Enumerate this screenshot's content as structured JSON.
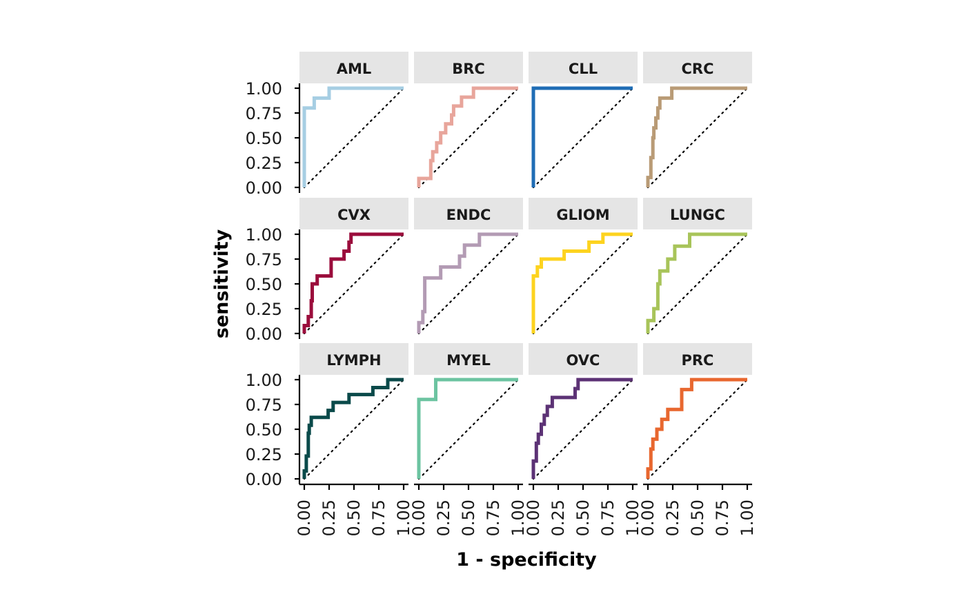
{
  "chart_data": {
    "type": "line",
    "xlabel": "1 - specificity",
    "ylabel": "sensitivity",
    "xlim": [
      0,
      1
    ],
    "ylim": [
      0,
      1
    ],
    "x_ticks": [
      "0.00",
      "0.25",
      "0.50",
      "0.75",
      "1.00"
    ],
    "y_ticks": [
      "0.00",
      "0.25",
      "0.50",
      "0.75",
      "1.00"
    ],
    "reference_line": "diagonal dotted y = x",
    "layout": "facet grid, 3 rows x 4 columns",
    "panels": [
      {
        "label": "AML",
        "color": "#a6cee3",
        "points": [
          [
            0,
            0
          ],
          [
            0,
            0.8
          ],
          [
            0.1,
            0.8
          ],
          [
            0.1,
            0.9
          ],
          [
            0.25,
            0.9
          ],
          [
            0.25,
            1
          ],
          [
            1,
            1
          ]
        ]
      },
      {
        "label": "BRC",
        "color": "#e8a59b",
        "points": [
          [
            0,
            0
          ],
          [
            0,
            0.09
          ],
          [
            0.12,
            0.09
          ],
          [
            0.12,
            0.27
          ],
          [
            0.14,
            0.27
          ],
          [
            0.14,
            0.36
          ],
          [
            0.18,
            0.36
          ],
          [
            0.18,
            0.45
          ],
          [
            0.22,
            0.45
          ],
          [
            0.22,
            0.55
          ],
          [
            0.27,
            0.55
          ],
          [
            0.27,
            0.64
          ],
          [
            0.33,
            0.64
          ],
          [
            0.33,
            0.73
          ],
          [
            0.35,
            0.73
          ],
          [
            0.35,
            0.82
          ],
          [
            0.43,
            0.82
          ],
          [
            0.43,
            0.91
          ],
          [
            0.55,
            0.91
          ],
          [
            0.55,
            1
          ],
          [
            1,
            1
          ]
        ]
      },
      {
        "label": "CLL",
        "color": "#1f6db5",
        "points": [
          [
            0,
            0
          ],
          [
            0,
            1
          ],
          [
            1,
            1
          ]
        ]
      },
      {
        "label": "CRC",
        "color": "#b99b76",
        "points": [
          [
            0,
            0
          ],
          [
            0,
            0.1
          ],
          [
            0.03,
            0.1
          ],
          [
            0.03,
            0.3
          ],
          [
            0.05,
            0.3
          ],
          [
            0.05,
            0.5
          ],
          [
            0.06,
            0.5
          ],
          [
            0.06,
            0.6
          ],
          [
            0.08,
            0.6
          ],
          [
            0.08,
            0.7
          ],
          [
            0.1,
            0.7
          ],
          [
            0.1,
            0.8
          ],
          [
            0.12,
            0.8
          ],
          [
            0.12,
            0.9
          ],
          [
            0.24,
            0.9
          ],
          [
            0.24,
            1
          ],
          [
            1,
            1
          ]
        ]
      },
      {
        "label": "CVX",
        "color": "#9b0d3c",
        "points": [
          [
            0,
            0
          ],
          [
            0,
            0.08
          ],
          [
            0.04,
            0.08
          ],
          [
            0.04,
            0.17
          ],
          [
            0.07,
            0.17
          ],
          [
            0.07,
            0.33
          ],
          [
            0.08,
            0.33
          ],
          [
            0.08,
            0.5
          ],
          [
            0.13,
            0.5
          ],
          [
            0.13,
            0.58
          ],
          [
            0.27,
            0.58
          ],
          [
            0.27,
            0.75
          ],
          [
            0.4,
            0.75
          ],
          [
            0.4,
            0.83
          ],
          [
            0.45,
            0.83
          ],
          [
            0.45,
            0.92
          ],
          [
            0.47,
            0.92
          ],
          [
            0.47,
            1
          ],
          [
            1,
            1
          ]
        ]
      },
      {
        "label": "ENDC",
        "color": "#b39bb4",
        "points": [
          [
            0,
            0
          ],
          [
            0,
            0.11
          ],
          [
            0.04,
            0.11
          ],
          [
            0.04,
            0.22
          ],
          [
            0.06,
            0.22
          ],
          [
            0.06,
            0.56
          ],
          [
            0.22,
            0.56
          ],
          [
            0.22,
            0.67
          ],
          [
            0.41,
            0.67
          ],
          [
            0.41,
            0.78
          ],
          [
            0.46,
            0.78
          ],
          [
            0.46,
            0.89
          ],
          [
            0.61,
            0.89
          ],
          [
            0.61,
            1
          ],
          [
            1,
            1
          ]
        ]
      },
      {
        "label": "GLIOM",
        "color": "#fdd31f",
        "points": [
          [
            0,
            0
          ],
          [
            0,
            0.58
          ],
          [
            0.04,
            0.58
          ],
          [
            0.04,
            0.67
          ],
          [
            0.08,
            0.67
          ],
          [
            0.08,
            0.75
          ],
          [
            0.31,
            0.75
          ],
          [
            0.31,
            0.83
          ],
          [
            0.56,
            0.83
          ],
          [
            0.56,
            0.92
          ],
          [
            0.7,
            0.92
          ],
          [
            0.7,
            1
          ],
          [
            1,
            1
          ]
        ]
      },
      {
        "label": "LUNGC",
        "color": "#a8c45a",
        "points": [
          [
            0,
            0
          ],
          [
            0,
            0.13
          ],
          [
            0.06,
            0.13
          ],
          [
            0.06,
            0.25
          ],
          [
            0.1,
            0.25
          ],
          [
            0.1,
            0.5
          ],
          [
            0.12,
            0.5
          ],
          [
            0.12,
            0.63
          ],
          [
            0.2,
            0.63
          ],
          [
            0.2,
            0.75
          ],
          [
            0.27,
            0.75
          ],
          [
            0.27,
            0.88
          ],
          [
            0.42,
            0.88
          ],
          [
            0.42,
            1
          ],
          [
            1,
            1
          ]
        ]
      },
      {
        "label": "LYMPH",
        "color": "#0a4a4a",
        "points": [
          [
            0,
            0
          ],
          [
            0,
            0.08
          ],
          [
            0.02,
            0.08
          ],
          [
            0.02,
            0.23
          ],
          [
            0.04,
            0.23
          ],
          [
            0.04,
            0.46
          ],
          [
            0.05,
            0.46
          ],
          [
            0.05,
            0.54
          ],
          [
            0.07,
            0.54
          ],
          [
            0.07,
            0.62
          ],
          [
            0.24,
            0.62
          ],
          [
            0.24,
            0.69
          ],
          [
            0.29,
            0.69
          ],
          [
            0.29,
            0.77
          ],
          [
            0.45,
            0.77
          ],
          [
            0.45,
            0.85
          ],
          [
            0.69,
            0.85
          ],
          [
            0.69,
            0.92
          ],
          [
            0.84,
            0.92
          ],
          [
            0.84,
            1
          ],
          [
            1,
            1
          ]
        ]
      },
      {
        "label": "MYEL",
        "color": "#6cc4a1",
        "points": [
          [
            0,
            0
          ],
          [
            0,
            0.8
          ],
          [
            0.17,
            0.8
          ],
          [
            0.17,
            1
          ],
          [
            1,
            1
          ]
        ]
      },
      {
        "label": "OVC",
        "color": "#5c3275",
        "points": [
          [
            0,
            0
          ],
          [
            0,
            0.18
          ],
          [
            0.03,
            0.18
          ],
          [
            0.03,
            0.36
          ],
          [
            0.05,
            0.36
          ],
          [
            0.05,
            0.45
          ],
          [
            0.08,
            0.45
          ],
          [
            0.08,
            0.55
          ],
          [
            0.11,
            0.55
          ],
          [
            0.11,
            0.64
          ],
          [
            0.14,
            0.64
          ],
          [
            0.14,
            0.73
          ],
          [
            0.19,
            0.73
          ],
          [
            0.19,
            0.82
          ],
          [
            0.42,
            0.82
          ],
          [
            0.42,
            0.91
          ],
          [
            0.45,
            0.91
          ],
          [
            0.45,
            1
          ],
          [
            1,
            1
          ]
        ]
      },
      {
        "label": "PRC",
        "color": "#e8672f",
        "points": [
          [
            0,
            0
          ],
          [
            0,
            0.1
          ],
          [
            0.03,
            0.1
          ],
          [
            0.03,
            0.3
          ],
          [
            0.05,
            0.3
          ],
          [
            0.05,
            0.4
          ],
          [
            0.09,
            0.4
          ],
          [
            0.09,
            0.5
          ],
          [
            0.14,
            0.5
          ],
          [
            0.14,
            0.6
          ],
          [
            0.2,
            0.6
          ],
          [
            0.2,
            0.7
          ],
          [
            0.34,
            0.7
          ],
          [
            0.34,
            0.9
          ],
          [
            0.44,
            0.9
          ],
          [
            0.44,
            1
          ],
          [
            1,
            1
          ]
        ]
      }
    ]
  }
}
